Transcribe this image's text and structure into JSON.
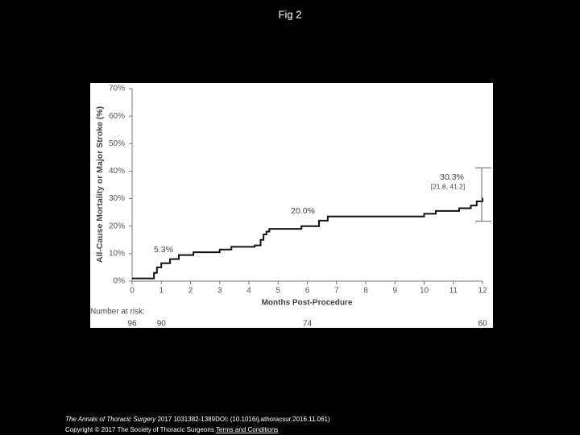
{
  "page_title": "Fig 2",
  "chart_data": {
    "type": "line",
    "step": "post",
    "xlabel": "Months Post-Procedure",
    "ylabel": "All-Cause Mortality or Major Stroke (%)",
    "x": [
      0,
      0.7,
      0.75,
      0.85,
      1.0,
      1.3,
      1.6,
      2.1,
      3.0,
      3.4,
      4.2,
      4.4,
      4.5,
      4.6,
      4.7,
      5.8,
      6.4,
      6.7,
      10.0,
      10.4,
      11.2,
      11.6,
      11.8,
      12
    ],
    "series": [
      {
        "name": "All-cause mortality or major stroke",
        "color": "#111111",
        "values": [
          1,
          1,
          3,
          5,
          6.5,
          8,
          9.5,
          10.5,
          11.5,
          12.5,
          13,
          15,
          17,
          18,
          19,
          20,
          22,
          23.5,
          24.5,
          25.5,
          26.5,
          27.5,
          29,
          30.3
        ]
      }
    ],
    "xlim": [
      0,
      12
    ],
    "xticks": [
      0,
      1,
      2,
      3,
      4,
      5,
      6,
      7,
      8,
      9,
      10,
      11,
      12
    ],
    "ylim": [
      0,
      70
    ],
    "yticks": [
      {
        "value": 0,
        "label": "0%"
      },
      {
        "value": 10,
        "label": "10%"
      },
      {
        "value": 20,
        "label": "20%"
      },
      {
        "value": 30,
        "label": "30%"
      },
      {
        "value": 40,
        "label": "40%"
      },
      {
        "value": 50,
        "label": "50%"
      },
      {
        "value": 60,
        "label": "60%"
      },
      {
        "value": 70,
        "label": "70%"
      }
    ],
    "grid": false,
    "annotations": [
      {
        "text": "5.3%"
      },
      {
        "text": "20.0%"
      },
      {
        "text": "30.3%"
      },
      {
        "text": "[21.8, 41.2]"
      }
    ],
    "ci": {
      "lower": 21.8,
      "upper": 41.2
    },
    "risk_label": "Number at risk:",
    "risk_times": [
      0,
      1,
      6,
      12
    ],
    "risk_counts": [
      96,
      90,
      74,
      60
    ]
  },
  "footer": {
    "journal": "The Annals of Thoracic Surgery",
    "citation": "2017 1031382-1389DOI: (10.1016/j.athoracsur.2016.11.061)",
    "copyright": "Copyright © 2017 The Society of Thoracic Surgeons",
    "link": "Terms and Conditions"
  }
}
